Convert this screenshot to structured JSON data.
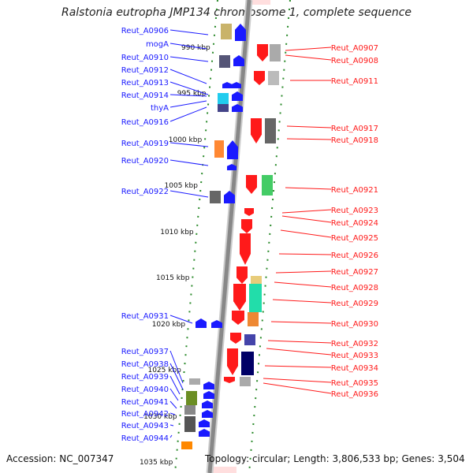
{
  "title": "Ralstonia eutropha JMP134 chromosome 1, complete sequence",
  "accession": "Accession: NC_007347",
  "topology": "Topology: circular; Length: 3,806,533 bp; Genes: 3,504",
  "colors": {
    "plus": "#1a1aff",
    "minus": "#ff1a1a",
    "scale": "#2a8a2a",
    "axis": "#888888"
  },
  "scale_labels": [
    "990 kbp",
    "995 kbp",
    "1000 kbp",
    "1005 kbp",
    "1010 kbp",
    "1015 kbp",
    "1020 kbp",
    "1025 kbp",
    "1030 kbp",
    "1035 kbp"
  ],
  "left_labels": [
    "Reut_A0906",
    "mogA",
    "Reut_A0910",
    "Reut_A0912",
    "Reut_A0913",
    "Reut_A0914",
    "thyA",
    "Reut_A0916",
    "Reut_A0919",
    "Reut_A0920",
    "Reut_A0922",
    "Reut_A0931",
    "Reut_A0937",
    "Reut_A0938",
    "Reut_A0939",
    "Reut_A0940",
    "Reut_A0941",
    "Reut_A0942",
    "Reut_A0943",
    "Reut_A0944"
  ],
  "right_labels": [
    "Reut_A0907",
    "Reut_A0908",
    "Reut_A0911",
    "Reut_A0917",
    "Reut_A0918",
    "Reut_A0921",
    "Reut_A0923",
    "Reut_A0924",
    "Reut_A0925",
    "Reut_A0926",
    "Reut_A0927",
    "Reut_A0928",
    "Reut_A0929",
    "Reut_A0930",
    "Reut_A0932",
    "Reut_A0933",
    "Reut_A0934",
    "Reut_A0935",
    "Reut_A0936"
  ]
}
